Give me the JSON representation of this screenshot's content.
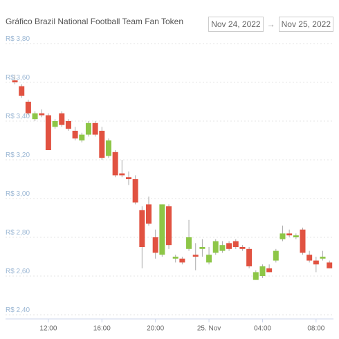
{
  "header": {
    "title": "Gráfico Brazil National Football Team Fan Token",
    "date_from": "Nov 24, 2022",
    "date_to": "Nov 25, 2022"
  },
  "chart_data": {
    "type": "candlestick",
    "x": [
      9.5,
      10,
      10.5,
      11,
      11.5,
      12,
      12.5,
      13,
      13.5,
      14,
      14.5,
      15,
      15.5,
      16,
      16.5,
      17,
      17.5,
      18,
      18.5,
      19,
      19.5,
      20,
      20.5,
      21,
      21.5,
      22,
      22.5,
      23,
      23.5,
      24,
      24.5,
      25,
      25.5,
      26,
      26.5,
      27,
      27.5,
      28,
      28.5,
      29,
      29.5,
      30,
      30.5,
      31,
      31.5,
      32,
      32.5,
      33
    ],
    "open": [
      3.61,
      3.58,
      3.5,
      3.41,
      3.44,
      3.43,
      3.37,
      3.44,
      3.4,
      3.35,
      3.3,
      3.33,
      3.39,
      3.35,
      3.22,
      3.24,
      3.13,
      3.11,
      3.1,
      2.94,
      2.97,
      2.8,
      2.71,
      2.96,
      2.69,
      2.69,
      2.74,
      2.71,
      2.74,
      2.67,
      2.72,
      2.73,
      2.77,
      2.78,
      2.75,
      2.74,
      2.58,
      2.6,
      2.64,
      2.68,
      2.79,
      2.82,
      2.8,
      2.84,
      2.71,
      2.68,
      2.69,
      2.67
    ],
    "high": [
      3.64,
      3.59,
      3.51,
      3.45,
      3.46,
      3.44,
      3.41,
      3.45,
      3.41,
      3.37,
      3.34,
      3.4,
      3.4,
      3.37,
      3.31,
      3.25,
      3.2,
      3.14,
      3.12,
      2.96,
      3.01,
      2.84,
      2.97,
      2.97,
      2.71,
      2.7,
      2.89,
      2.77,
      2.79,
      2.75,
      2.79,
      2.78,
      2.78,
      2.79,
      2.76,
      2.75,
      2.63,
      2.66,
      2.66,
      2.74,
      2.86,
      2.84,
      2.82,
      2.85,
      2.73,
      2.7,
      2.73,
      2.68
    ],
    "low": [
      3.59,
      3.52,
      3.43,
      3.4,
      3.42,
      3.25,
      3.36,
      3.37,
      3.35,
      3.3,
      3.29,
      3.32,
      3.32,
      3.2,
      3.21,
      3.11,
      3.11,
      3.07,
      2.97,
      2.64,
      2.86,
      2.69,
      2.7,
      2.74,
      2.67,
      2.66,
      2.73,
      2.63,
      2.7,
      2.66,
      2.71,
      2.72,
      2.73,
      2.74,
      2.73,
      2.64,
      2.58,
      2.59,
      2.62,
      2.67,
      2.78,
      2.8,
      2.79,
      2.71,
      2.67,
      2.62,
      2.68,
      2.64
    ],
    "close": [
      3.6,
      3.53,
      3.44,
      3.44,
      3.43,
      3.25,
      3.4,
      3.38,
      3.36,
      3.31,
      3.33,
      3.39,
      3.33,
      3.21,
      3.3,
      3.12,
      3.12,
      3.1,
      2.98,
      2.75,
      2.87,
      2.72,
      2.97,
      2.76,
      2.7,
      2.67,
      2.8,
      2.7,
      2.75,
      2.71,
      2.78,
      2.76,
      2.74,
      2.75,
      2.74,
      2.65,
      2.62,
      2.65,
      2.62,
      2.73,
      2.82,
      2.81,
      2.81,
      2.72,
      2.68,
      2.66,
      2.7,
      2.64
    ],
    "up_color": "#8dc647",
    "down_color": "#e15241",
    "xlim": [
      8.8,
      33.3
    ],
    "xticks": [
      {
        "value": 12,
        "label": "12:00"
      },
      {
        "value": 16,
        "label": "16:00"
      },
      {
        "value": 20,
        "label": "20:00"
      },
      {
        "value": 24,
        "label": "25. Nov"
      },
      {
        "value": 28,
        "label": "04:00"
      },
      {
        "value": 32,
        "label": "08:00"
      }
    ],
    "ylim": [
      2.4,
      3.8
    ],
    "yticks": [
      {
        "value": 2.4,
        "label": "R$ 2,40"
      },
      {
        "value": 2.6,
        "label": "R$ 2,60"
      },
      {
        "value": 2.8,
        "label": "R$ 2,80"
      },
      {
        "value": 3.0,
        "label": "R$ 3,00"
      },
      {
        "value": 3.2,
        "label": "R$ 3,20"
      },
      {
        "value": 3.4,
        "label": "R$ 3,40"
      },
      {
        "value": 3.6,
        "label": "R$ 3,60"
      },
      {
        "value": 3.8,
        "label": "R$ 3,80"
      }
    ],
    "grid": true
  }
}
